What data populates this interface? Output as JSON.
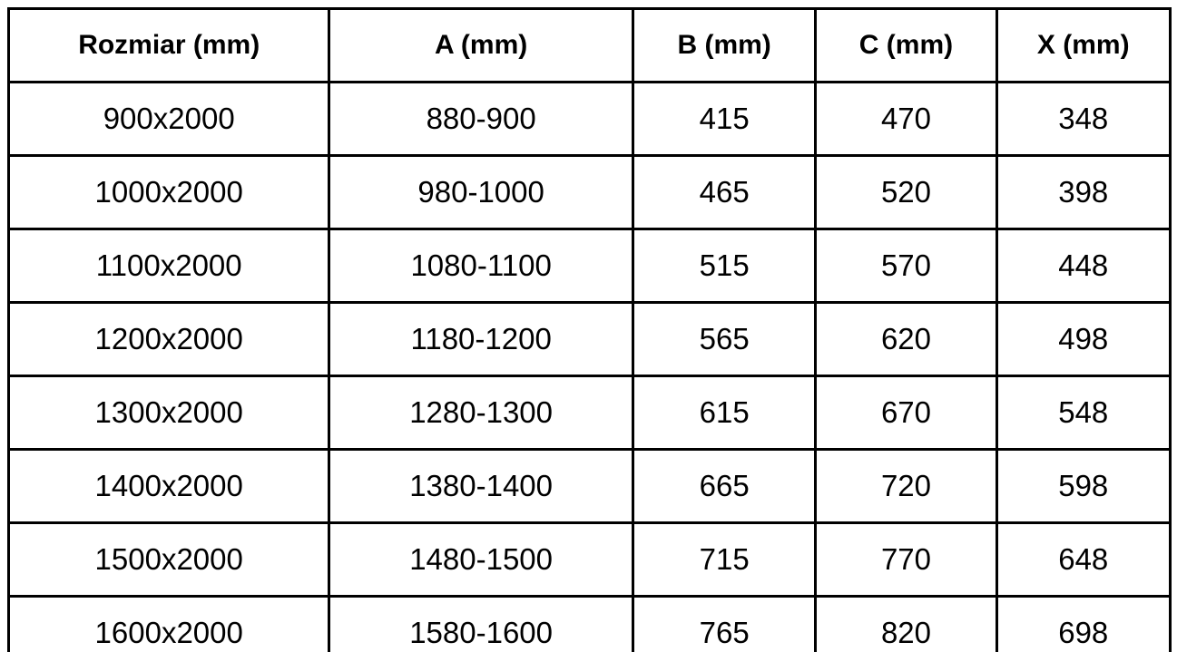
{
  "colors": {
    "background": "#ffffff",
    "border": "#000000",
    "text": "#000000"
  },
  "table": {
    "columns": [
      "Rozmiar (mm)",
      "A (mm)",
      "B (mm)",
      "C (mm)",
      "X (mm)"
    ],
    "rows": [
      [
        "900x2000",
        "880-900",
        "415",
        "470",
        "348"
      ],
      [
        "1000x2000",
        "980-1000",
        "465",
        "520",
        "398"
      ],
      [
        "1100x2000",
        "1080-1100",
        "515",
        "570",
        "448"
      ],
      [
        "1200x2000",
        "1180-1200",
        "565",
        "620",
        "498"
      ],
      [
        "1300x2000",
        "1280-1300",
        "615",
        "670",
        "548"
      ],
      [
        "1400x2000",
        "1380-1400",
        "665",
        "720",
        "598"
      ],
      [
        "1500x2000",
        "1480-1500",
        "715",
        "770",
        "648"
      ],
      [
        "1600x2000",
        "1580-1600",
        "765",
        "820",
        "698"
      ]
    ]
  },
  "chart_data": {
    "type": "table",
    "title": "",
    "columns": [
      "Rozmiar (mm)",
      "A (mm)",
      "B (mm)",
      "C (mm)",
      "X (mm)"
    ],
    "rows": [
      [
        "900x2000",
        "880-900",
        415,
        470,
        348
      ],
      [
        "1000x2000",
        "980-1000",
        465,
        520,
        398
      ],
      [
        "1100x2000",
        "1080-1100",
        515,
        570,
        448
      ],
      [
        "1200x2000",
        "1180-1200",
        565,
        620,
        498
      ],
      [
        "1300x2000",
        "1280-1300",
        615,
        670,
        548
      ],
      [
        "1400x2000",
        "1380-1400",
        665,
        720,
        598
      ],
      [
        "1500x2000",
        "1480-1500",
        715,
        770,
        648
      ],
      [
        "1600x2000",
        "1580-1600",
        765,
        820,
        698
      ]
    ]
  }
}
